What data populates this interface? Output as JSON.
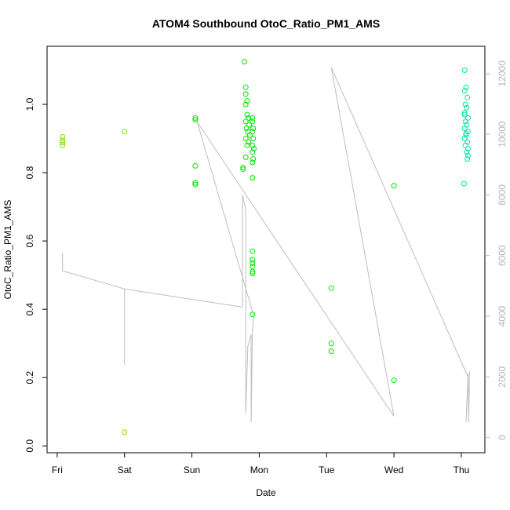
{
  "chart_data": {
    "type": "scatter",
    "title": "ATOM4 Southbound OtoC_Ratio_PM1_AMS",
    "xlabel": "Date",
    "ylabel": "OtoC_Ratio_PM1_AMS",
    "x_axis": {
      "range_days": [
        -0.15,
        6.35
      ],
      "ticks": [
        {
          "day": 0,
          "label": "Fri"
        },
        {
          "day": 1,
          "label": "Sat"
        },
        {
          "day": 2,
          "label": "Sun"
        },
        {
          "day": 3,
          "label": "Mon"
        },
        {
          "day": 4,
          "label": "Tue"
        },
        {
          "day": 5,
          "label": "Wed"
        },
        {
          "day": 6,
          "label": "Thu"
        }
      ]
    },
    "y_axis_left": {
      "range": [
        -0.02,
        1.17
      ],
      "ticks": [
        0.0,
        0.2,
        0.4,
        0.6,
        0.8,
        1.0
      ],
      "tick_labels": [
        "0.0",
        "0.2",
        "0.4",
        "0.6",
        "0.8",
        "1.0"
      ]
    },
    "y_axis_right": {
      "range": [
        -500,
        12900
      ],
      "ticks": [
        0,
        2000,
        4000,
        6000,
        8000,
        10000,
        12000
      ],
      "tick_labels": [
        "0",
        "2000",
        "4000",
        "6000",
        "8000",
        "10000",
        "12000"
      ]
    },
    "grid": false,
    "colors": {
      "axis": "#000000",
      "right_axis": "#b4b4b4",
      "line": "#bebebe",
      "point_early": "#7fe000",
      "point_mid": "#00e600",
      "point_late": "#00e6a0"
    },
    "series": [
      {
        "type": "scatter",
        "marker": "open-circle",
        "points": [
          [
            0.08,
            0.905,
            "early"
          ],
          [
            0.08,
            0.895,
            "early"
          ],
          [
            0.08,
            0.888,
            "early"
          ],
          [
            0.08,
            0.88,
            "early"
          ],
          [
            1.0,
            0.92,
            "early"
          ],
          [
            1.0,
            0.04,
            "early"
          ],
          [
            2.05,
            0.96,
            "mid"
          ],
          [
            2.05,
            0.955,
            "mid"
          ],
          [
            2.05,
            0.82,
            "mid"
          ],
          [
            2.05,
            0.77,
            "mid"
          ],
          [
            2.05,
            0.765,
            "mid"
          ],
          [
            2.78,
            1.125,
            "mid"
          ],
          [
            2.8,
            1.05,
            "mid"
          ],
          [
            2.8,
            1.03,
            "mid"
          ],
          [
            2.82,
            1.01,
            "mid"
          ],
          [
            2.8,
            1.0,
            "mid"
          ],
          [
            2.82,
            0.97,
            "mid"
          ],
          [
            2.84,
            0.96,
            "mid"
          ],
          [
            2.8,
            0.95,
            "mid"
          ],
          [
            2.85,
            0.94,
            "mid"
          ],
          [
            2.81,
            0.93,
            "mid"
          ],
          [
            2.83,
            0.92,
            "mid"
          ],
          [
            2.86,
            0.91,
            "mid"
          ],
          [
            2.8,
            0.9,
            "mid"
          ],
          [
            2.84,
            0.89,
            "mid"
          ],
          [
            2.82,
            0.88,
            "mid"
          ],
          [
            2.9,
            0.96,
            "mid"
          ],
          [
            2.9,
            0.95,
            "mid"
          ],
          [
            2.91,
            0.93,
            "mid"
          ],
          [
            2.9,
            0.92,
            "mid"
          ],
          [
            2.91,
            0.9,
            "mid"
          ],
          [
            2.9,
            0.88,
            "mid"
          ],
          [
            2.92,
            0.87,
            "mid"
          ],
          [
            2.9,
            0.86,
            "mid"
          ],
          [
            2.91,
            0.84,
            "mid"
          ],
          [
            2.9,
            0.83,
            "mid"
          ],
          [
            2.76,
            0.815,
            "mid"
          ],
          [
            2.76,
            0.81,
            "mid"
          ],
          [
            2.8,
            0.845,
            "mid"
          ],
          [
            2.9,
            0.785,
            "mid"
          ],
          [
            2.9,
            0.57,
            "mid"
          ],
          [
            2.9,
            0.545,
            "mid"
          ],
          [
            2.9,
            0.535,
            "mid"
          ],
          [
            2.9,
            0.525,
            "mid"
          ],
          [
            2.9,
            0.51,
            "mid"
          ],
          [
            2.9,
            0.505,
            "mid"
          ],
          [
            2.9,
            0.385,
            "mid"
          ],
          [
            4.07,
            0.462,
            "mid"
          ],
          [
            4.07,
            0.3,
            "mid"
          ],
          [
            4.07,
            0.277,
            "mid"
          ],
          [
            5.0,
            0.762,
            "mid"
          ],
          [
            5.0,
            0.192,
            "mid"
          ],
          [
            6.05,
            1.1,
            "late"
          ],
          [
            6.07,
            1.05,
            "late"
          ],
          [
            6.05,
            1.04,
            "late"
          ],
          [
            6.09,
            1.02,
            "late"
          ],
          [
            6.06,
            1.0,
            "late"
          ],
          [
            6.08,
            0.99,
            "late"
          ],
          [
            6.05,
            0.97,
            "late"
          ],
          [
            6.1,
            0.96,
            "late"
          ],
          [
            6.06,
            0.95,
            "late"
          ],
          [
            6.08,
            0.94,
            "late"
          ],
          [
            6.05,
            0.93,
            "late"
          ],
          [
            6.1,
            0.92,
            "late"
          ],
          [
            6.07,
            0.91,
            "late"
          ],
          [
            6.05,
            0.9,
            "late"
          ],
          [
            6.09,
            0.89,
            "late"
          ],
          [
            6.06,
            0.88,
            "late"
          ],
          [
            6.1,
            0.87,
            "late"
          ],
          [
            6.08,
            0.86,
            "late"
          ],
          [
            6.1,
            0.85,
            "late"
          ],
          [
            6.09,
            0.84,
            "late"
          ],
          [
            6.05,
            0.975,
            "late"
          ],
          [
            6.07,
            0.915,
            "late"
          ],
          [
            6.04,
            0.768,
            "late"
          ]
        ]
      },
      {
        "type": "line",
        "axis": "right",
        "points": [
          [
            0.08,
            6100
          ],
          [
            0.08,
            5500
          ],
          [
            1.0,
            4900
          ],
          [
            1.0,
            2400
          ],
          [
            1.0,
            4900
          ],
          [
            2.75,
            4300
          ],
          [
            2.75,
            8000
          ],
          [
            2.8,
            7500
          ],
          [
            2.8,
            800
          ],
          [
            2.83,
            3000
          ],
          [
            2.88,
            3400
          ],
          [
            2.88,
            500
          ],
          [
            2.9,
            3600
          ],
          [
            2.92,
            4000
          ],
          [
            2.08,
            10400
          ],
          [
            5.0,
            700
          ],
          [
            4.07,
            12200
          ],
          [
            6.1,
            2000
          ],
          [
            6.07,
            500
          ],
          [
            6.1,
            2100
          ],
          [
            6.11,
            500
          ],
          [
            6.12,
            2200
          ]
        ]
      }
    ]
  }
}
